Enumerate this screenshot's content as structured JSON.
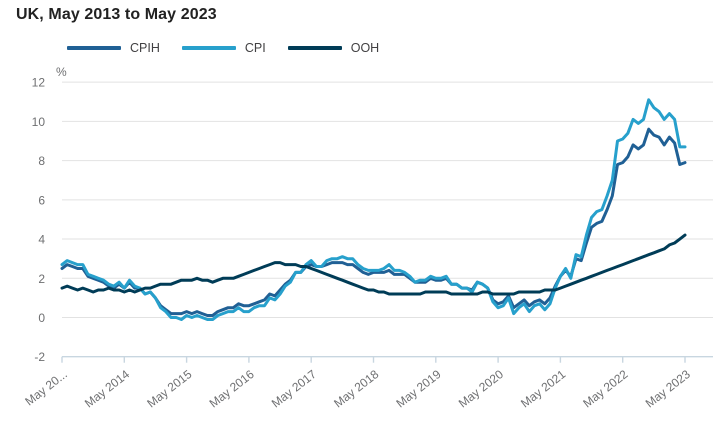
{
  "title": "UK, May 2013 to May 2023",
  "chart_data": {
    "type": "line",
    "title": "UK, May 2013 to May 2023",
    "unit_label": "%",
    "frequency": "monthly",
    "x_start": "May 2013",
    "x_end": "May 2023",
    "xticklabels": [
      "May 20...",
      "May 2014",
      "May 2015",
      "May 2016",
      "May 2017",
      "May 2018",
      "May 2019",
      "May 2020",
      "May 2021",
      "May 2022",
      "May 2023"
    ],
    "yticks": [
      -2,
      0,
      2,
      4,
      6,
      8,
      10,
      12
    ],
    "ylim": [
      -2,
      12
    ],
    "grid": "horizontal",
    "legend_position": "top",
    "series": [
      {
        "name": "CPIH",
        "color": "#206095",
        "values": [
          2.5,
          2.7,
          2.6,
          2.5,
          2.5,
          2.1,
          2.0,
          1.9,
          1.8,
          1.6,
          1.5,
          1.7,
          1.5,
          1.8,
          1.5,
          1.5,
          1.2,
          1.3,
          1.0,
          0.6,
          0.4,
          0.2,
          0.2,
          0.2,
          0.3,
          0.2,
          0.3,
          0.2,
          0.1,
          0.1,
          0.3,
          0.4,
          0.5,
          0.5,
          0.7,
          0.6,
          0.6,
          0.7,
          0.8,
          0.9,
          1.2,
          1.1,
          1.4,
          1.7,
          1.9,
          2.3,
          2.3,
          2.6,
          2.7,
          2.6,
          2.6,
          2.7,
          2.8,
          2.8,
          2.8,
          2.7,
          2.7,
          2.5,
          2.3,
          2.2,
          2.3,
          2.3,
          2.3,
          2.4,
          2.2,
          2.2,
          2.2,
          2.0,
          1.8,
          1.8,
          1.8,
          2.0,
          1.9,
          1.9,
          2.0,
          1.7,
          1.7,
          1.5,
          1.5,
          1.4,
          1.8,
          1.7,
          1.5,
          0.9,
          0.7,
          0.8,
          1.1,
          0.5,
          0.7,
          0.9,
          0.6,
          0.8,
          0.9,
          0.7,
          1.0,
          1.6,
          2.1,
          2.4,
          2.1,
          3.0,
          2.9,
          3.8,
          4.6,
          4.8,
          4.9,
          5.5,
          6.2,
          7.8,
          7.9,
          8.2,
          8.8,
          8.6,
          8.8,
          9.6,
          9.3,
          9.2,
          8.8,
          9.2,
          8.9,
          7.8,
          7.9
        ]
      },
      {
        "name": "CPI",
        "color": "#27A0CC",
        "values": [
          2.7,
          2.9,
          2.8,
          2.7,
          2.7,
          2.2,
          2.1,
          2.0,
          1.9,
          1.7,
          1.6,
          1.8,
          1.5,
          1.9,
          1.6,
          1.5,
          1.2,
          1.3,
          1.0,
          0.5,
          0.3,
          0.0,
          0.0,
          -0.1,
          0.1,
          0.0,
          0.1,
          0.0,
          -0.1,
          -0.1,
          0.1,
          0.2,
          0.3,
          0.3,
          0.5,
          0.3,
          0.3,
          0.5,
          0.6,
          0.6,
          1.0,
          0.9,
          1.2,
          1.6,
          1.8,
          2.3,
          2.3,
          2.7,
          2.9,
          2.6,
          2.6,
          2.9,
          3.0,
          3.0,
          3.1,
          3.0,
          3.0,
          2.7,
          2.5,
          2.4,
          2.4,
          2.4,
          2.5,
          2.7,
          2.4,
          2.4,
          2.3,
          2.1,
          1.8,
          1.9,
          1.9,
          2.1,
          2.0,
          2.0,
          2.1,
          1.7,
          1.7,
          1.5,
          1.5,
          1.3,
          1.8,
          1.7,
          1.5,
          0.8,
          0.5,
          0.6,
          1.0,
          0.2,
          0.5,
          0.7,
          0.3,
          0.6,
          0.7,
          0.4,
          0.7,
          1.5,
          2.1,
          2.5,
          2.0,
          3.2,
          3.1,
          4.2,
          5.1,
          5.4,
          5.5,
          6.2,
          7.0,
          9.0,
          9.1,
          9.4,
          10.1,
          9.9,
          10.1,
          11.1,
          10.7,
          10.5,
          10.1,
          10.4,
          10.1,
          8.7,
          8.7
        ]
      },
      {
        "name": "OOH",
        "color": "#003C57",
        "values": [
          1.5,
          1.6,
          1.5,
          1.4,
          1.5,
          1.4,
          1.3,
          1.4,
          1.4,
          1.5,
          1.4,
          1.4,
          1.3,
          1.4,
          1.3,
          1.4,
          1.5,
          1.5,
          1.6,
          1.7,
          1.7,
          1.7,
          1.8,
          1.9,
          1.9,
          1.9,
          2.0,
          1.9,
          1.9,
          1.8,
          1.9,
          2.0,
          2.0,
          2.0,
          2.1,
          2.2,
          2.3,
          2.4,
          2.5,
          2.6,
          2.7,
          2.8,
          2.8,
          2.7,
          2.7,
          2.7,
          2.6,
          2.6,
          2.5,
          2.4,
          2.3,
          2.2,
          2.1,
          2.0,
          1.9,
          1.8,
          1.7,
          1.6,
          1.5,
          1.4,
          1.4,
          1.3,
          1.3,
          1.2,
          1.2,
          1.2,
          1.2,
          1.2,
          1.2,
          1.2,
          1.3,
          1.3,
          1.3,
          1.3,
          1.3,
          1.2,
          1.2,
          1.2,
          1.2,
          1.2,
          1.2,
          1.3,
          1.3,
          1.2,
          1.2,
          1.2,
          1.2,
          1.2,
          1.3,
          1.3,
          1.3,
          1.3,
          1.3,
          1.4,
          1.4,
          1.4,
          1.5,
          1.6,
          1.7,
          1.8,
          1.9,
          2.0,
          2.1,
          2.2,
          2.3,
          2.4,
          2.5,
          2.6,
          2.7,
          2.8,
          2.9,
          3.0,
          3.1,
          3.2,
          3.3,
          3.4,
          3.5,
          3.7,
          3.8,
          4.0,
          4.2
        ]
      }
    ]
  },
  "colors": {
    "gridline": "#e2e2e2",
    "baseline": "#c8d6e0",
    "axis_text": "#6e6f71",
    "legend_text": "#414042",
    "title_text": "#222222"
  }
}
